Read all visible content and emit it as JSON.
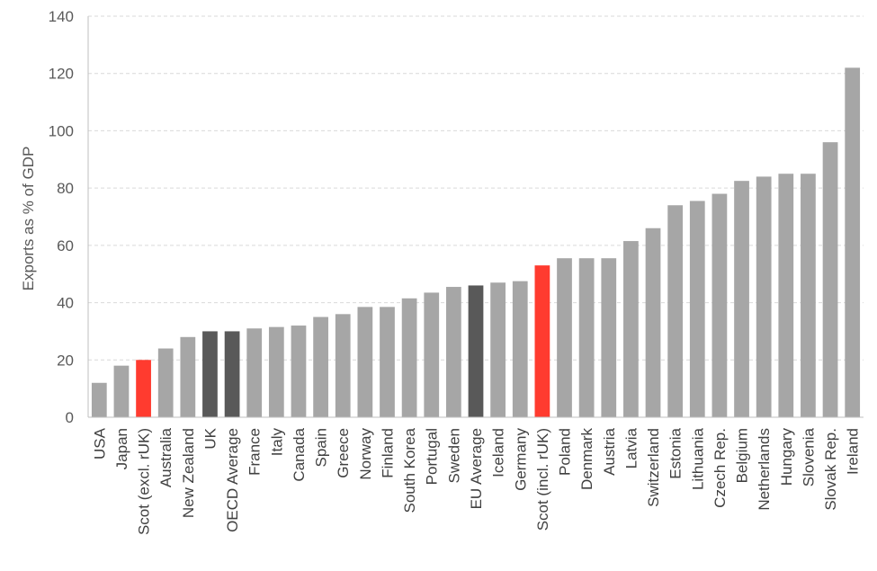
{
  "chart_data": {
    "type": "bar",
    "title": "",
    "xlabel": "",
    "ylabel": "Exports as % of GDP",
    "ylim": [
      0,
      140
    ],
    "yticks": [
      0,
      20,
      40,
      60,
      80,
      100,
      120,
      140
    ],
    "grid": true,
    "categories": [
      "USA",
      "Japan",
      "Scot (excl. rUK)",
      "Australia",
      "New Zealand",
      "UK",
      "OECD Average",
      "France",
      "Italy",
      "Canada",
      "Spain",
      "Greece",
      "Norway",
      "Finland",
      "South Korea",
      "Portugal",
      "Sweden",
      "EU Average",
      "Iceland",
      "Germany",
      "Scot (incl. rUK)",
      "Poland",
      "Denmark",
      "Austria",
      "Latvia",
      "Switzerland",
      "Estonia",
      "Lithuania",
      "Czech Rep.",
      "Belgium",
      "Netherlands",
      "Hungary",
      "Slovenia",
      "Slovak Rep.",
      "Ireland"
    ],
    "values": [
      12,
      18,
      20,
      24,
      28,
      30,
      30,
      31,
      31.5,
      32,
      35,
      36,
      38.5,
      38.5,
      41.5,
      43.5,
      45.5,
      46,
      47,
      47.5,
      53,
      55.5,
      55.5,
      55.5,
      61.5,
      66,
      74,
      75.5,
      78,
      82.5,
      84,
      85,
      85,
      96,
      122
    ],
    "bar_colors": [
      "#a6a6a6",
      "#a6a6a6",
      "#ff3b2f",
      "#a6a6a6",
      "#a6a6a6",
      "#595959",
      "#595959",
      "#a6a6a6",
      "#a6a6a6",
      "#a6a6a6",
      "#a6a6a6",
      "#a6a6a6",
      "#a6a6a6",
      "#a6a6a6",
      "#a6a6a6",
      "#a6a6a6",
      "#a6a6a6",
      "#595959",
      "#a6a6a6",
      "#a6a6a6",
      "#ff3b2f",
      "#a6a6a6",
      "#a6a6a6",
      "#a6a6a6",
      "#a6a6a6",
      "#a6a6a6",
      "#a6a6a6",
      "#a6a6a6",
      "#a6a6a6",
      "#a6a6a6",
      "#a6a6a6",
      "#a6a6a6",
      "#a6a6a6",
      "#a6a6a6",
      "#a6a6a6"
    ]
  }
}
